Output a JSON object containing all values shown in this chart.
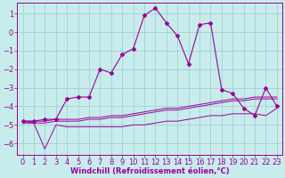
{
  "xlabel": "Windchill (Refroidissement éolien,°C)",
  "background_color": "#c8ecec",
  "grid_color": "#a0d0d0",
  "line_color": "#990099",
  "x_data": [
    0,
    1,
    2,
    3,
    4,
    5,
    6,
    7,
    8,
    9,
    10,
    11,
    12,
    13,
    14,
    15,
    16,
    17,
    18,
    19,
    20,
    21,
    22,
    23
  ],
  "y_main": [
    -4.8,
    -4.8,
    -4.7,
    -4.7,
    -3.6,
    -3.5,
    -3.5,
    -2.0,
    -2.2,
    -1.2,
    -0.9,
    0.9,
    1.3,
    0.5,
    -0.2,
    -1.7,
    0.4,
    0.5,
    -3.1,
    -3.3,
    -4.1,
    -4.5,
    -3.0,
    -4.0
  ],
  "y_flat1": [
    -4.8,
    -4.8,
    -4.8,
    -4.7,
    -4.7,
    -4.7,
    -4.6,
    -4.6,
    -4.5,
    -4.5,
    -4.4,
    -4.3,
    -4.2,
    -4.1,
    -4.1,
    -4.0,
    -3.9,
    -3.8,
    -3.7,
    -3.6,
    -3.6,
    -3.5,
    -3.5,
    -3.5
  ],
  "y_flat2": [
    -4.9,
    -4.9,
    -4.9,
    -4.8,
    -4.8,
    -4.8,
    -4.7,
    -4.7,
    -4.6,
    -4.6,
    -4.5,
    -4.4,
    -4.3,
    -4.2,
    -4.2,
    -4.1,
    -4.0,
    -3.9,
    -3.8,
    -3.7,
    -3.7,
    -3.6,
    -3.6,
    -3.6
  ],
  "y_diag": [
    -4.8,
    -4.9,
    -6.3,
    -5.0,
    -5.1,
    -5.1,
    -5.1,
    -5.1,
    -5.1,
    -5.1,
    -5.0,
    -5.0,
    -4.9,
    -4.8,
    -4.8,
    -4.7,
    -4.6,
    -4.5,
    -4.5,
    -4.4,
    -4.4,
    -4.4,
    -4.5,
    -4.1
  ],
  "ylim": [
    -6.6,
    1.6
  ],
  "xlim": [
    -0.5,
    23.5
  ],
  "yticks": [
    -6,
    -5,
    -4,
    -3,
    -2,
    -1,
    0,
    1
  ],
  "xticks": [
    0,
    1,
    2,
    3,
    4,
    5,
    6,
    7,
    8,
    9,
    10,
    11,
    12,
    13,
    14,
    15,
    16,
    17,
    18,
    19,
    20,
    21,
    22,
    23
  ],
  "xlabel_fontsize": 6,
  "tick_fontsize": 6,
  "linewidth_main": 0.8,
  "linewidth_flat": 0.7,
  "markersize": 2.0
}
